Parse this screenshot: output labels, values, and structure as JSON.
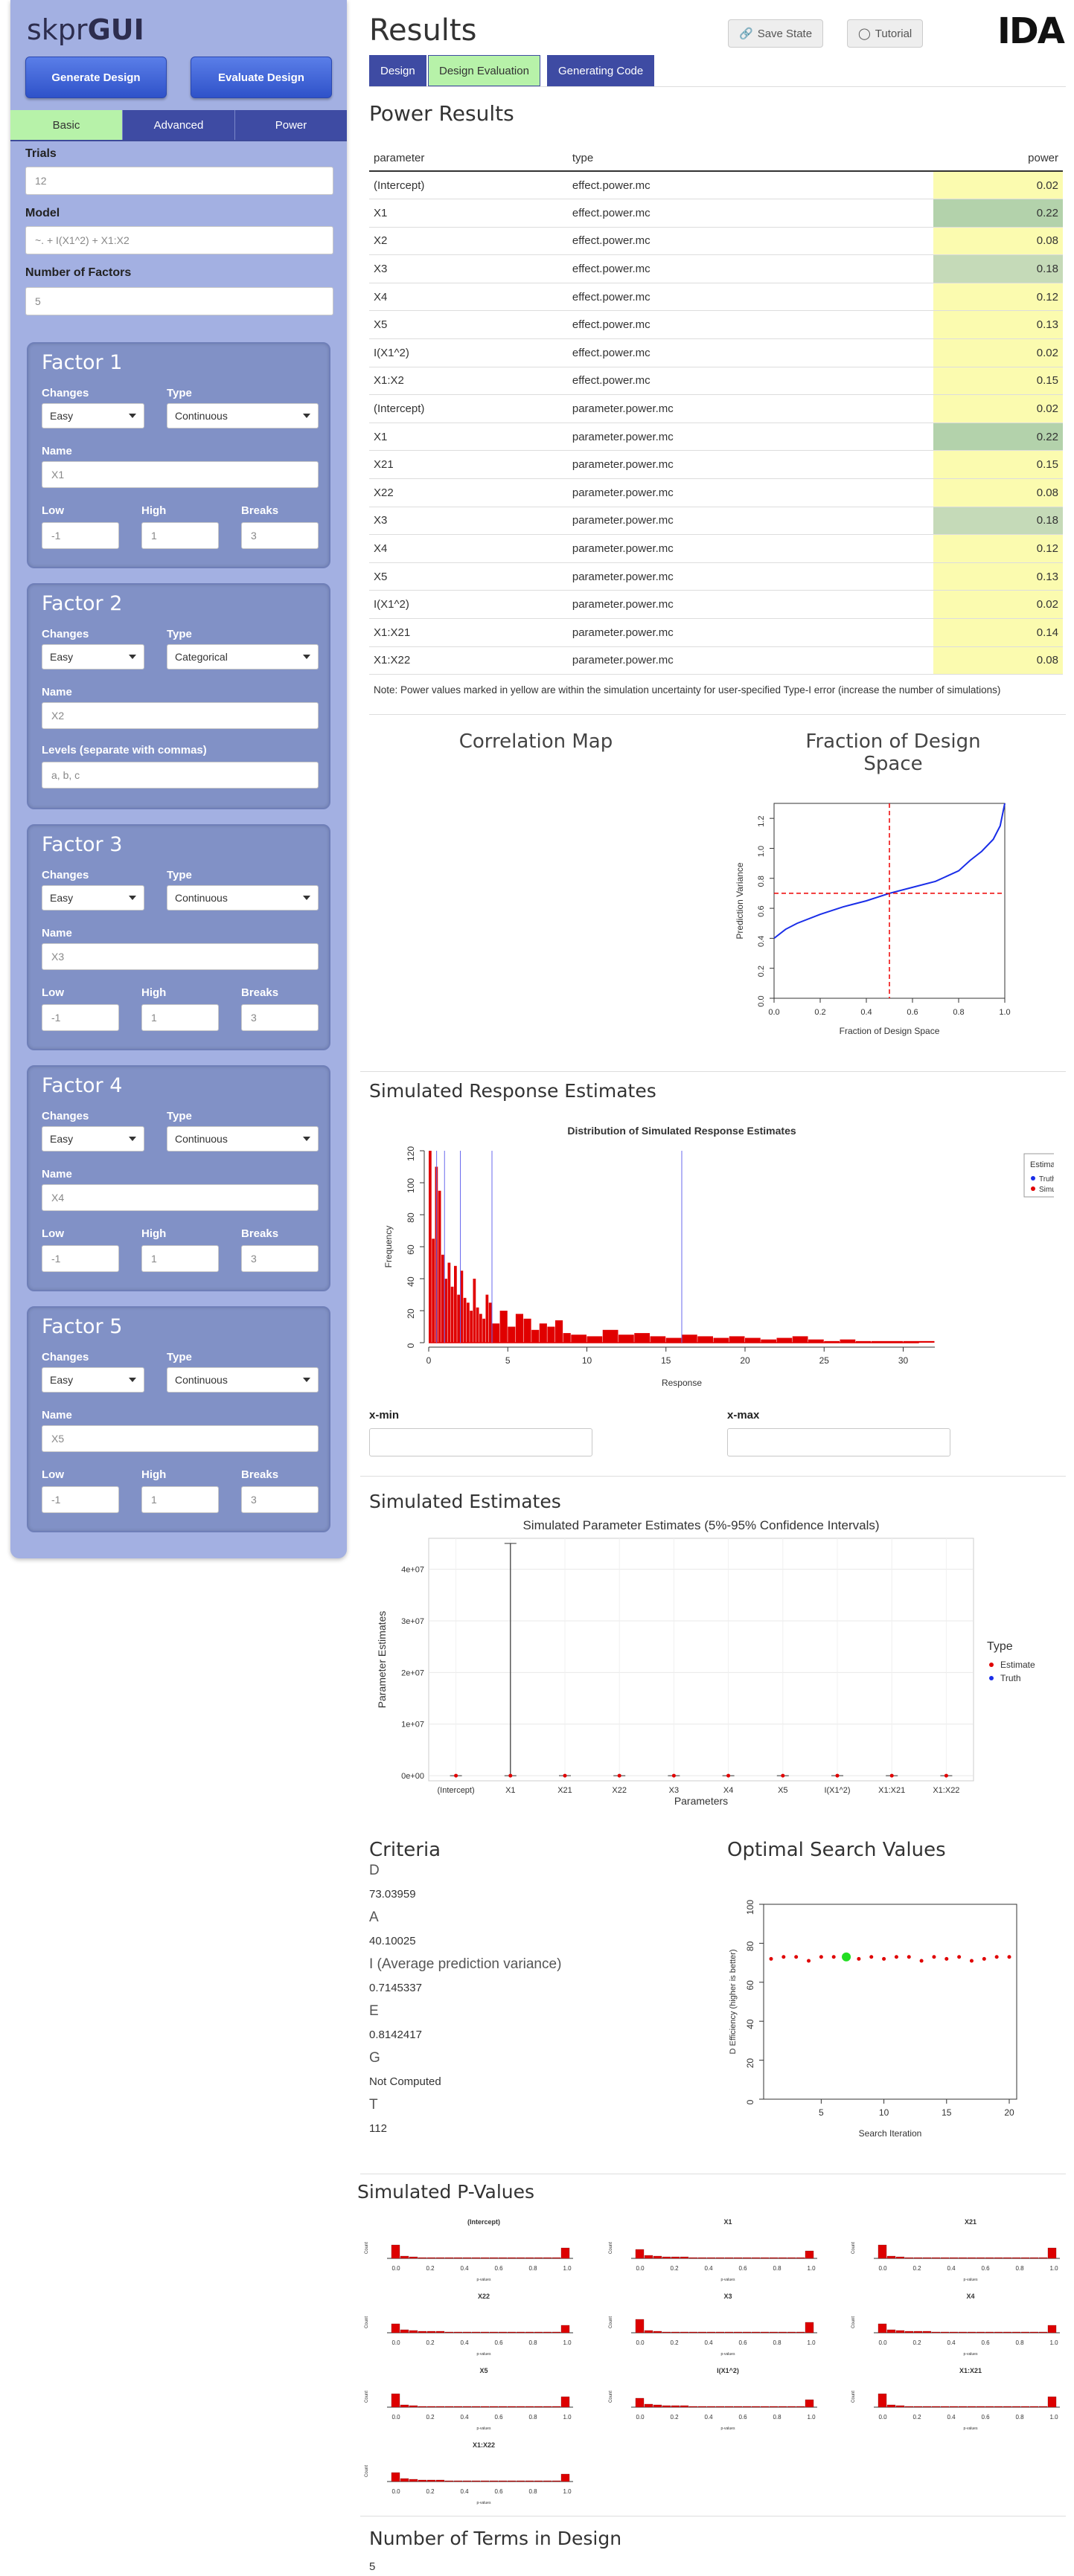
{
  "sidebar": {
    "brand_light": "skpr",
    "brand_bold": "GUI",
    "generate_label": "Generate Design",
    "evaluate_label": "Evaluate Design",
    "tabs": [
      "Basic",
      "Advanced",
      "Power"
    ],
    "trials_label": "Trials",
    "trials_value": "12",
    "model_label": "Model",
    "model_value": "~. + I(X1^2) + X1:X2",
    "nfactors_label": "Number of Factors",
    "nfactors_value": "5",
    "factors": [
      {
        "title": "Factor 1",
        "changes_label": "Changes",
        "changes": "Easy",
        "type_label": "Type",
        "type": "Continuous",
        "name_label": "Name",
        "name": "X1",
        "low_label": "Low",
        "low": "-1",
        "high_label": "High",
        "high": "1",
        "breaks_label": "Breaks",
        "breaks": "3"
      },
      {
        "title": "Factor 2",
        "changes_label": "Changes",
        "changes": "Easy",
        "type_label": "Type",
        "type": "Categorical",
        "name_label": "Name",
        "name": "X2",
        "levels_label": "Levels (separate with commas)",
        "levels": "a, b, c"
      },
      {
        "title": "Factor 3",
        "changes_label": "Changes",
        "changes": "Easy",
        "type_label": "Type",
        "type": "Continuous",
        "name_label": "Name",
        "name": "X3",
        "low_label": "Low",
        "low": "-1",
        "high_label": "High",
        "high": "1",
        "breaks_label": "Breaks",
        "breaks": "3"
      },
      {
        "title": "Factor 4",
        "changes_label": "Changes",
        "changes": "Easy",
        "type_label": "Type",
        "type": "Continuous",
        "name_label": "Name",
        "name": "X4",
        "low_label": "Low",
        "low": "-1",
        "high_label": "High",
        "high": "1",
        "breaks_label": "Breaks",
        "breaks": "3"
      },
      {
        "title": "Factor 5",
        "changes_label": "Changes",
        "changes": "Easy",
        "type_label": "Type",
        "type": "Continuous",
        "name_label": "Name",
        "name": "X5",
        "low_label": "Low",
        "low": "-1",
        "high_label": "High",
        "high": "1",
        "breaks_label": "Breaks",
        "breaks": "3"
      }
    ]
  },
  "header": {
    "title": "Results",
    "save_state": "Save State",
    "tutorial": "Tutorial",
    "logo": "IDA",
    "tabs": [
      "Design",
      "Design Evaluation",
      "Generating Code"
    ]
  },
  "power": {
    "title": "Power Results",
    "columns": [
      "parameter",
      "type",
      "power"
    ],
    "rows": [
      [
        "(Intercept)",
        "effect.power.mc",
        "0.02"
      ],
      [
        "X1",
        "effect.power.mc",
        "0.22"
      ],
      [
        "X2",
        "effect.power.mc",
        "0.08"
      ],
      [
        "X3",
        "effect.power.mc",
        "0.18"
      ],
      [
        "X4",
        "effect.power.mc",
        "0.12"
      ],
      [
        "X5",
        "effect.power.mc",
        "0.13"
      ],
      [
        "I(X1^2)",
        "effect.power.mc",
        "0.02"
      ],
      [
        "X1:X2",
        "effect.power.mc",
        "0.15"
      ],
      [
        "(Intercept)",
        "parameter.power.mc",
        "0.02"
      ],
      [
        "X1",
        "parameter.power.mc",
        "0.22"
      ],
      [
        "X21",
        "parameter.power.mc",
        "0.15"
      ],
      [
        "X22",
        "parameter.power.mc",
        "0.08"
      ],
      [
        "X3",
        "parameter.power.mc",
        "0.18"
      ],
      [
        "X4",
        "parameter.power.mc",
        "0.12"
      ],
      [
        "X5",
        "parameter.power.mc",
        "0.13"
      ],
      [
        "I(X1^2)",
        "parameter.power.mc",
        "0.02"
      ],
      [
        "X1:X21",
        "parameter.power.mc",
        "0.14"
      ],
      [
        "X1:X22",
        "parameter.power.mc",
        "0.08"
      ]
    ],
    "row_colors": [
      "#fbfbaf",
      "#b3d2ab",
      "#fbfbaf",
      "#c5dab8",
      "#fbfbaf",
      "#fbfbaf",
      "#fbfbaf",
      "#fbfbaf",
      "#fbfbaf",
      "#b3d2ab",
      "#fbfbaf",
      "#fbfbaf",
      "#c5dab8",
      "#fbfbaf",
      "#fbfbaf",
      "#fbfbaf",
      "#fbfbaf",
      "#fbfbaf"
    ],
    "note": "Note: Power values marked in yellow are within the simulation uncertainty for user-specified Type-I error (increase the number of simulations)"
  },
  "sections": {
    "corr_title": "Correlation Map",
    "fds_title": "Fraction of Design Space",
    "sim_resp_title": "Simulated Response Estimates",
    "xmin_label": "x-min",
    "xmax_label": "x-max",
    "sim_est_title": "Simulated Estimates",
    "criteria_title": "Criteria",
    "opt_title": "Optimal Search Values",
    "pvalues_title": "Simulated P-Values",
    "nterms_title": "Number of Terms in Design",
    "nterms_value": "5"
  },
  "criteria": [
    {
      "label": "D",
      "value": "73.03959"
    },
    {
      "label": "A",
      "value": "40.10025"
    },
    {
      "label": "I (Average prediction variance)",
      "value": "0.7145337"
    },
    {
      "label": "E",
      "value": "0.8142417"
    },
    {
      "label": "G",
      "value": "Not Computed"
    },
    {
      "label": "T",
      "value": "112"
    }
  ],
  "chart_data": [
    {
      "type": "line",
      "title": "",
      "xlabel": "Fraction of Design Space",
      "ylabel": "Prediction Variance",
      "xlim": [
        0,
        1
      ],
      "ylim": [
        0,
        1.3
      ],
      "xticks": [
        "0.0",
        "0.2",
        "0.4",
        "0.6",
        "0.8",
        "1.0"
      ],
      "yticks": [
        "0.0",
        "0.2",
        "0.4",
        "0.6",
        "0.8",
        "1.0",
        "1.2"
      ],
      "x": [
        0,
        0.05,
        0.1,
        0.2,
        0.3,
        0.4,
        0.5,
        0.6,
        0.7,
        0.8,
        0.85,
        0.9,
        0.95,
        0.98,
        1.0
      ],
      "y": [
        0.4,
        0.46,
        0.5,
        0.56,
        0.61,
        0.65,
        0.7,
        0.74,
        0.78,
        0.85,
        0.92,
        0.98,
        1.06,
        1.15,
        1.3
      ],
      "ref_x": 0.5,
      "ref_y": 0.7
    },
    {
      "type": "bar",
      "title": "Distribution of Simulated Response Estimates",
      "xlabel": "Response",
      "ylabel": "Frequency",
      "xlim": [
        0,
        32
      ],
      "ylim": [
        0,
        120
      ],
      "xticks": [
        "0",
        "5",
        "10",
        "15",
        "20",
        "25",
        "30"
      ],
      "yticks": [
        "0",
        "20",
        "40",
        "60",
        "80",
        "100",
        "120"
      ],
      "legend_title": "Estimates",
      "legend": [
        "Truth",
        "Simulated"
      ],
      "truth_lines": [
        0.5,
        1,
        2,
        4,
        16
      ],
      "bins": [
        0.2,
        0.4,
        0.6,
        0.8,
        1.0,
        1.2,
        1.4,
        1.6,
        1.8,
        2.0,
        2.2,
        2.4,
        2.6,
        2.8,
        3.0,
        3.2,
        3.4,
        3.6,
        3.8,
        4.0,
        4.5,
        5.0,
        5.5,
        6.0,
        6.5,
        7.0,
        7.5,
        8.0,
        8.5,
        9.0,
        10,
        11,
        12,
        13,
        14,
        15,
        16,
        17,
        18,
        19,
        20,
        21,
        22,
        23,
        24,
        25,
        26,
        27,
        28,
        30,
        32
      ],
      "values": [
        120,
        65,
        110,
        95,
        55,
        40,
        50,
        35,
        48,
        30,
        45,
        28,
        25,
        20,
        40,
        22,
        18,
        15,
        30,
        25,
        12,
        20,
        10,
        18,
        15,
        8,
        12,
        10,
        14,
        6,
        5,
        4,
        8,
        5,
        6,
        4,
        3,
        5,
        4,
        3,
        4,
        3,
        2,
        3,
        4,
        2,
        1,
        2,
        1,
        1,
        1
      ]
    },
    {
      "type": "scatter",
      "title": "Simulated Parameter Estimates (5%-95% Confidence Intervals)",
      "xlabel": "Parameters",
      "ylabel": "Parameter Estimates",
      "categories": [
        "(Intercept)",
        "X1",
        "X21",
        "X22",
        "X3",
        "X4",
        "X5",
        "I(X1^2)",
        "X1:X21",
        "X1:X22"
      ],
      "yticks": [
        "0e+00",
        "1e+07",
        "2e+07",
        "3e+07",
        "4e+07"
      ],
      "ylim": [
        -1000000,
        46000000
      ],
      "legend_title": "Type",
      "legend": [
        "Estimate",
        "Truth"
      ],
      "upper": [
        0,
        45000000,
        0,
        0,
        0,
        0,
        0,
        0,
        0,
        0
      ]
    },
    {
      "type": "scatter",
      "title": "",
      "xlabel": "Search Iteration",
      "ylabel": "D Efficiency (higher is better)",
      "xlim": [
        1,
        20
      ],
      "ylim": [
        0,
        100
      ],
      "xticks": [
        "5",
        "10",
        "15",
        "20"
      ],
      "yticks": [
        "0",
        "20",
        "40",
        "60",
        "80",
        "100"
      ],
      "x": [
        1,
        2,
        3,
        4,
        5,
        6,
        7,
        8,
        9,
        10,
        11,
        12,
        13,
        14,
        15,
        16,
        17,
        18,
        19,
        20
      ],
      "y": [
        72,
        73,
        73,
        71,
        73,
        73,
        73,
        72,
        73,
        72,
        73,
        73,
        71,
        73,
        72,
        73,
        71,
        72,
        73,
        73
      ],
      "best_index": 6
    },
    {
      "type": "bar",
      "title": "Simulated P-Values",
      "panels": [
        "(Intercept)",
        "X1",
        "X21",
        "X22",
        "X3",
        "X4",
        "X5",
        "I(X1^2)",
        "X1:X21",
        "X1:X22"
      ],
      "xticks": [
        "0.0",
        "0.2",
        "0.4",
        "0.6",
        "0.8",
        "1.0"
      ]
    }
  ],
  "colors": {
    "accent": "#3e4ba3",
    "active_tab": "#b7f2a9",
    "sidebar": "#a3b0e2",
    "factor_panel": "#8191c6",
    "bar_red": "#e00000",
    "truth_blue": "#1a2ee8"
  }
}
